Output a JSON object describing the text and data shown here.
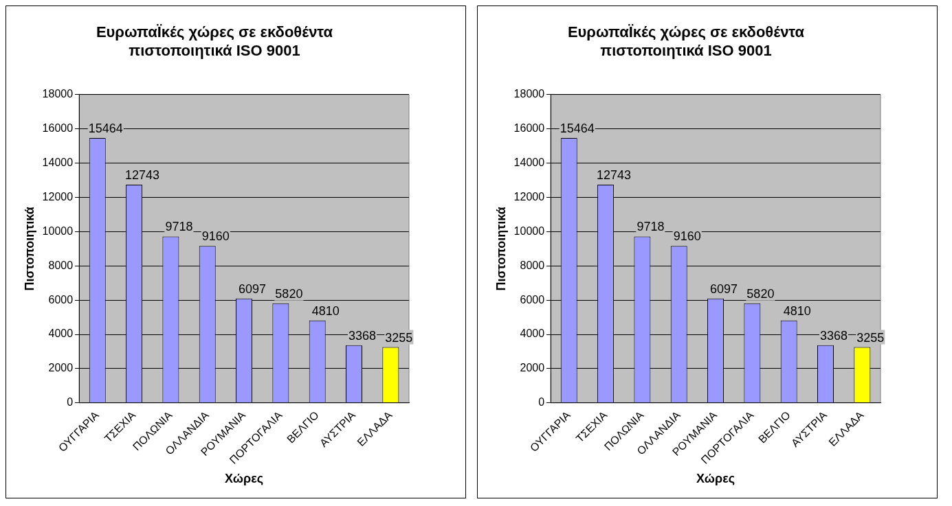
{
  "chart_data": [
    {
      "type": "bar",
      "title": "ΕυρωπαΪκές χώρες σε εκδοθέντα\nπιστοποιητικά ISO 9001",
      "xlabel": "Χώρες",
      "ylabel": "Πιστοποιητικά",
      "categories": [
        "ΟΥΓΓΑΡΙΑ",
        "ΤΣΕΧΙΑ",
        "ΠΟΛΩΝΙΑ",
        "ΟΛΛΑΝΔΙΑ",
        "ΡΟΥΜΑΝΙΑ",
        "ΠΟΡΤΟΓΑΛΙΑ",
        "ΒΕΛΓΙΟ",
        "ΑΥΣΤΡΙΑ",
        "ΕΛΛΑΔΑ"
      ],
      "values": [
        15464,
        12743,
        9718,
        9160,
        6097,
        5820,
        4810,
        3368,
        3255
      ],
      "colors": [
        "#9999ff",
        "#9999ff",
        "#9999ff",
        "#9999ff",
        "#9999ff",
        "#9999ff",
        "#9999ff",
        "#9999ff",
        "#ffff00"
      ],
      "ylim": [
        0,
        18000
      ],
      "yticks": [
        0,
        2000,
        4000,
        6000,
        8000,
        10000,
        12000,
        14000,
        16000,
        18000
      ],
      "grid": "y",
      "data_labels": true,
      "legend": false
    },
    {
      "type": "bar",
      "title": "ΕυρωπαΪκές χώρες σε εκδοθέντα\nπιστοποιητικά ISO 9001",
      "xlabel": "Χώρες",
      "ylabel": "Πιστοποιητικά",
      "categories": [
        "ΟΥΓΓΑΡΙΑ",
        "ΤΣΕΧΙΑ",
        "ΠΟΛΩΝΙΑ",
        "ΟΛΛΑΝΔΙΑ",
        "ΡΟΥΜΑΝΙΑ",
        "ΠΟΡΤΟΓΑΛΙΑ",
        "ΒΕΛΓΙΟ",
        "ΑΥΣΤΡΙΑ",
        "ΕΛΛΑΔΑ"
      ],
      "values": [
        15464,
        12743,
        9718,
        9160,
        6097,
        5820,
        4810,
        3368,
        3255
      ],
      "colors": [
        "#9999ff",
        "#9999ff",
        "#9999ff",
        "#9999ff",
        "#9999ff",
        "#9999ff",
        "#9999ff",
        "#9999ff",
        "#ffff00"
      ],
      "ylim": [
        0,
        18000
      ],
      "yticks": [
        0,
        2000,
        4000,
        6000,
        8000,
        10000,
        12000,
        14000,
        16000,
        18000
      ],
      "grid": "y",
      "data_labels": true,
      "legend": false
    }
  ]
}
